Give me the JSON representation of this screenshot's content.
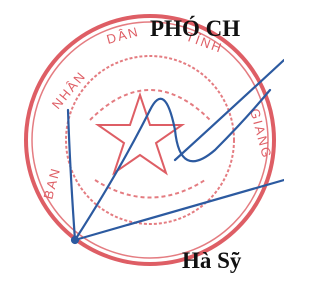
{
  "heading": "PHÓ CH",
  "name": "Hà Sỹ",
  "stamp": {
    "texts": [
      "BAN",
      "NHÂN",
      "DÂN",
      "TỈNH",
      "GIANG"
    ]
  }
}
